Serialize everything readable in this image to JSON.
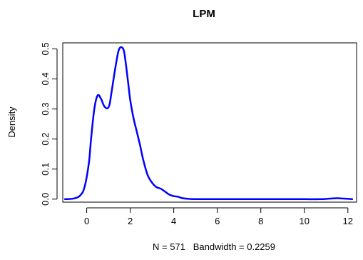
{
  "chart_data": {
    "type": "line",
    "title": "LPM",
    "xlabel": "N = 571   Bandwidth = 0.2259",
    "ylabel": "Density",
    "xlim": [
      -1.1,
      12.4
    ],
    "ylim": [
      -0.01,
      0.52
    ],
    "x_ticks": [
      0,
      2,
      4,
      6,
      8,
      10,
      12
    ],
    "y_ticks": [
      0.0,
      0.1,
      0.2,
      0.3,
      0.4,
      0.5
    ],
    "y_tick_labels": [
      "0.0",
      "0.1",
      "0.2",
      "0.3",
      "0.4",
      "0.5"
    ],
    "grid": false,
    "line_color": "#0000ff",
    "series": [
      {
        "x": [
          -1.0,
          -0.6,
          -0.3,
          -0.1,
          0.1,
          0.2,
          0.35,
          0.5,
          0.65,
          0.8,
          0.95,
          1.05,
          1.15,
          1.3,
          1.45,
          1.55,
          1.65,
          1.72,
          1.8,
          1.9,
          2.0,
          2.15,
          2.3,
          2.45,
          2.6,
          2.8,
          3.0,
          3.2,
          3.4,
          3.6,
          3.8,
          4.0,
          4.2,
          4.4,
          4.7,
          5.0,
          6.0,
          7.0,
          8.0,
          9.0,
          10.0,
          10.8,
          11.2,
          11.5,
          11.8,
          12.2
        ],
        "y": [
          0.0,
          0.002,
          0.012,
          0.04,
          0.12,
          0.2,
          0.3,
          0.345,
          0.335,
          0.31,
          0.302,
          0.315,
          0.36,
          0.43,
          0.49,
          0.505,
          0.503,
          0.49,
          0.45,
          0.39,
          0.33,
          0.27,
          0.225,
          0.18,
          0.13,
          0.08,
          0.055,
          0.04,
          0.035,
          0.025,
          0.015,
          0.01,
          0.008,
          0.003,
          0.001,
          0.0,
          0.0,
          0.0,
          0.0,
          0.0,
          0.0,
          0.0,
          0.002,
          0.003,
          0.002,
          0.0
        ]
      }
    ]
  }
}
